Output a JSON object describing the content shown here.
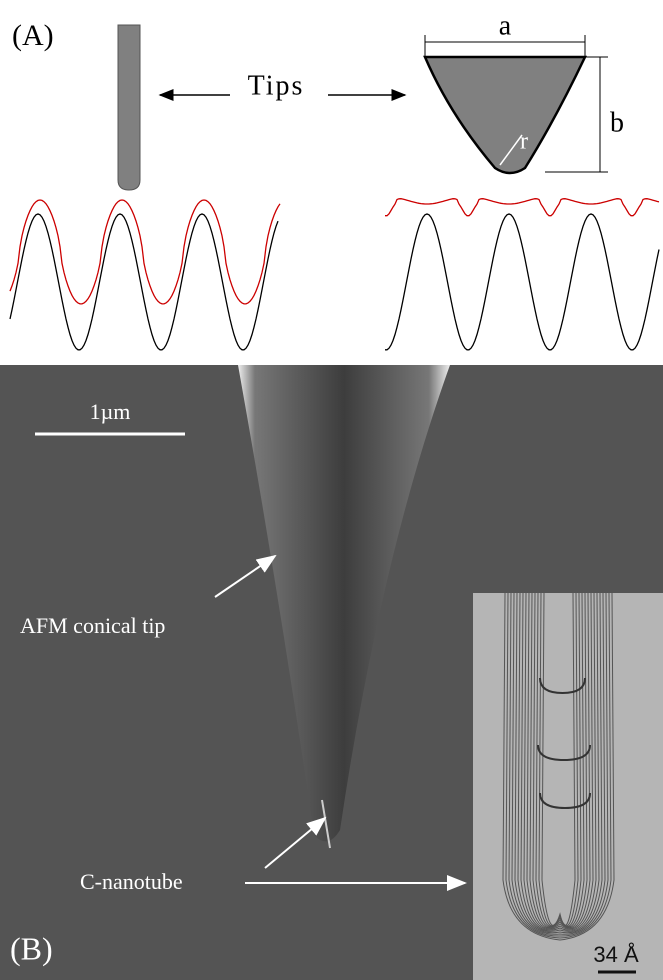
{
  "panel_a": {
    "label": "(A)",
    "tips_label": "Tips",
    "dim_a": "a",
    "dim_b": "b",
    "dim_r": "r"
  },
  "panel_b": {
    "label": "(B)",
    "scale_bar": "1µm",
    "afm_label": "AFM conical tip",
    "nanotube_label": "C-nanotube",
    "inset_scale": "34 Å"
  }
}
